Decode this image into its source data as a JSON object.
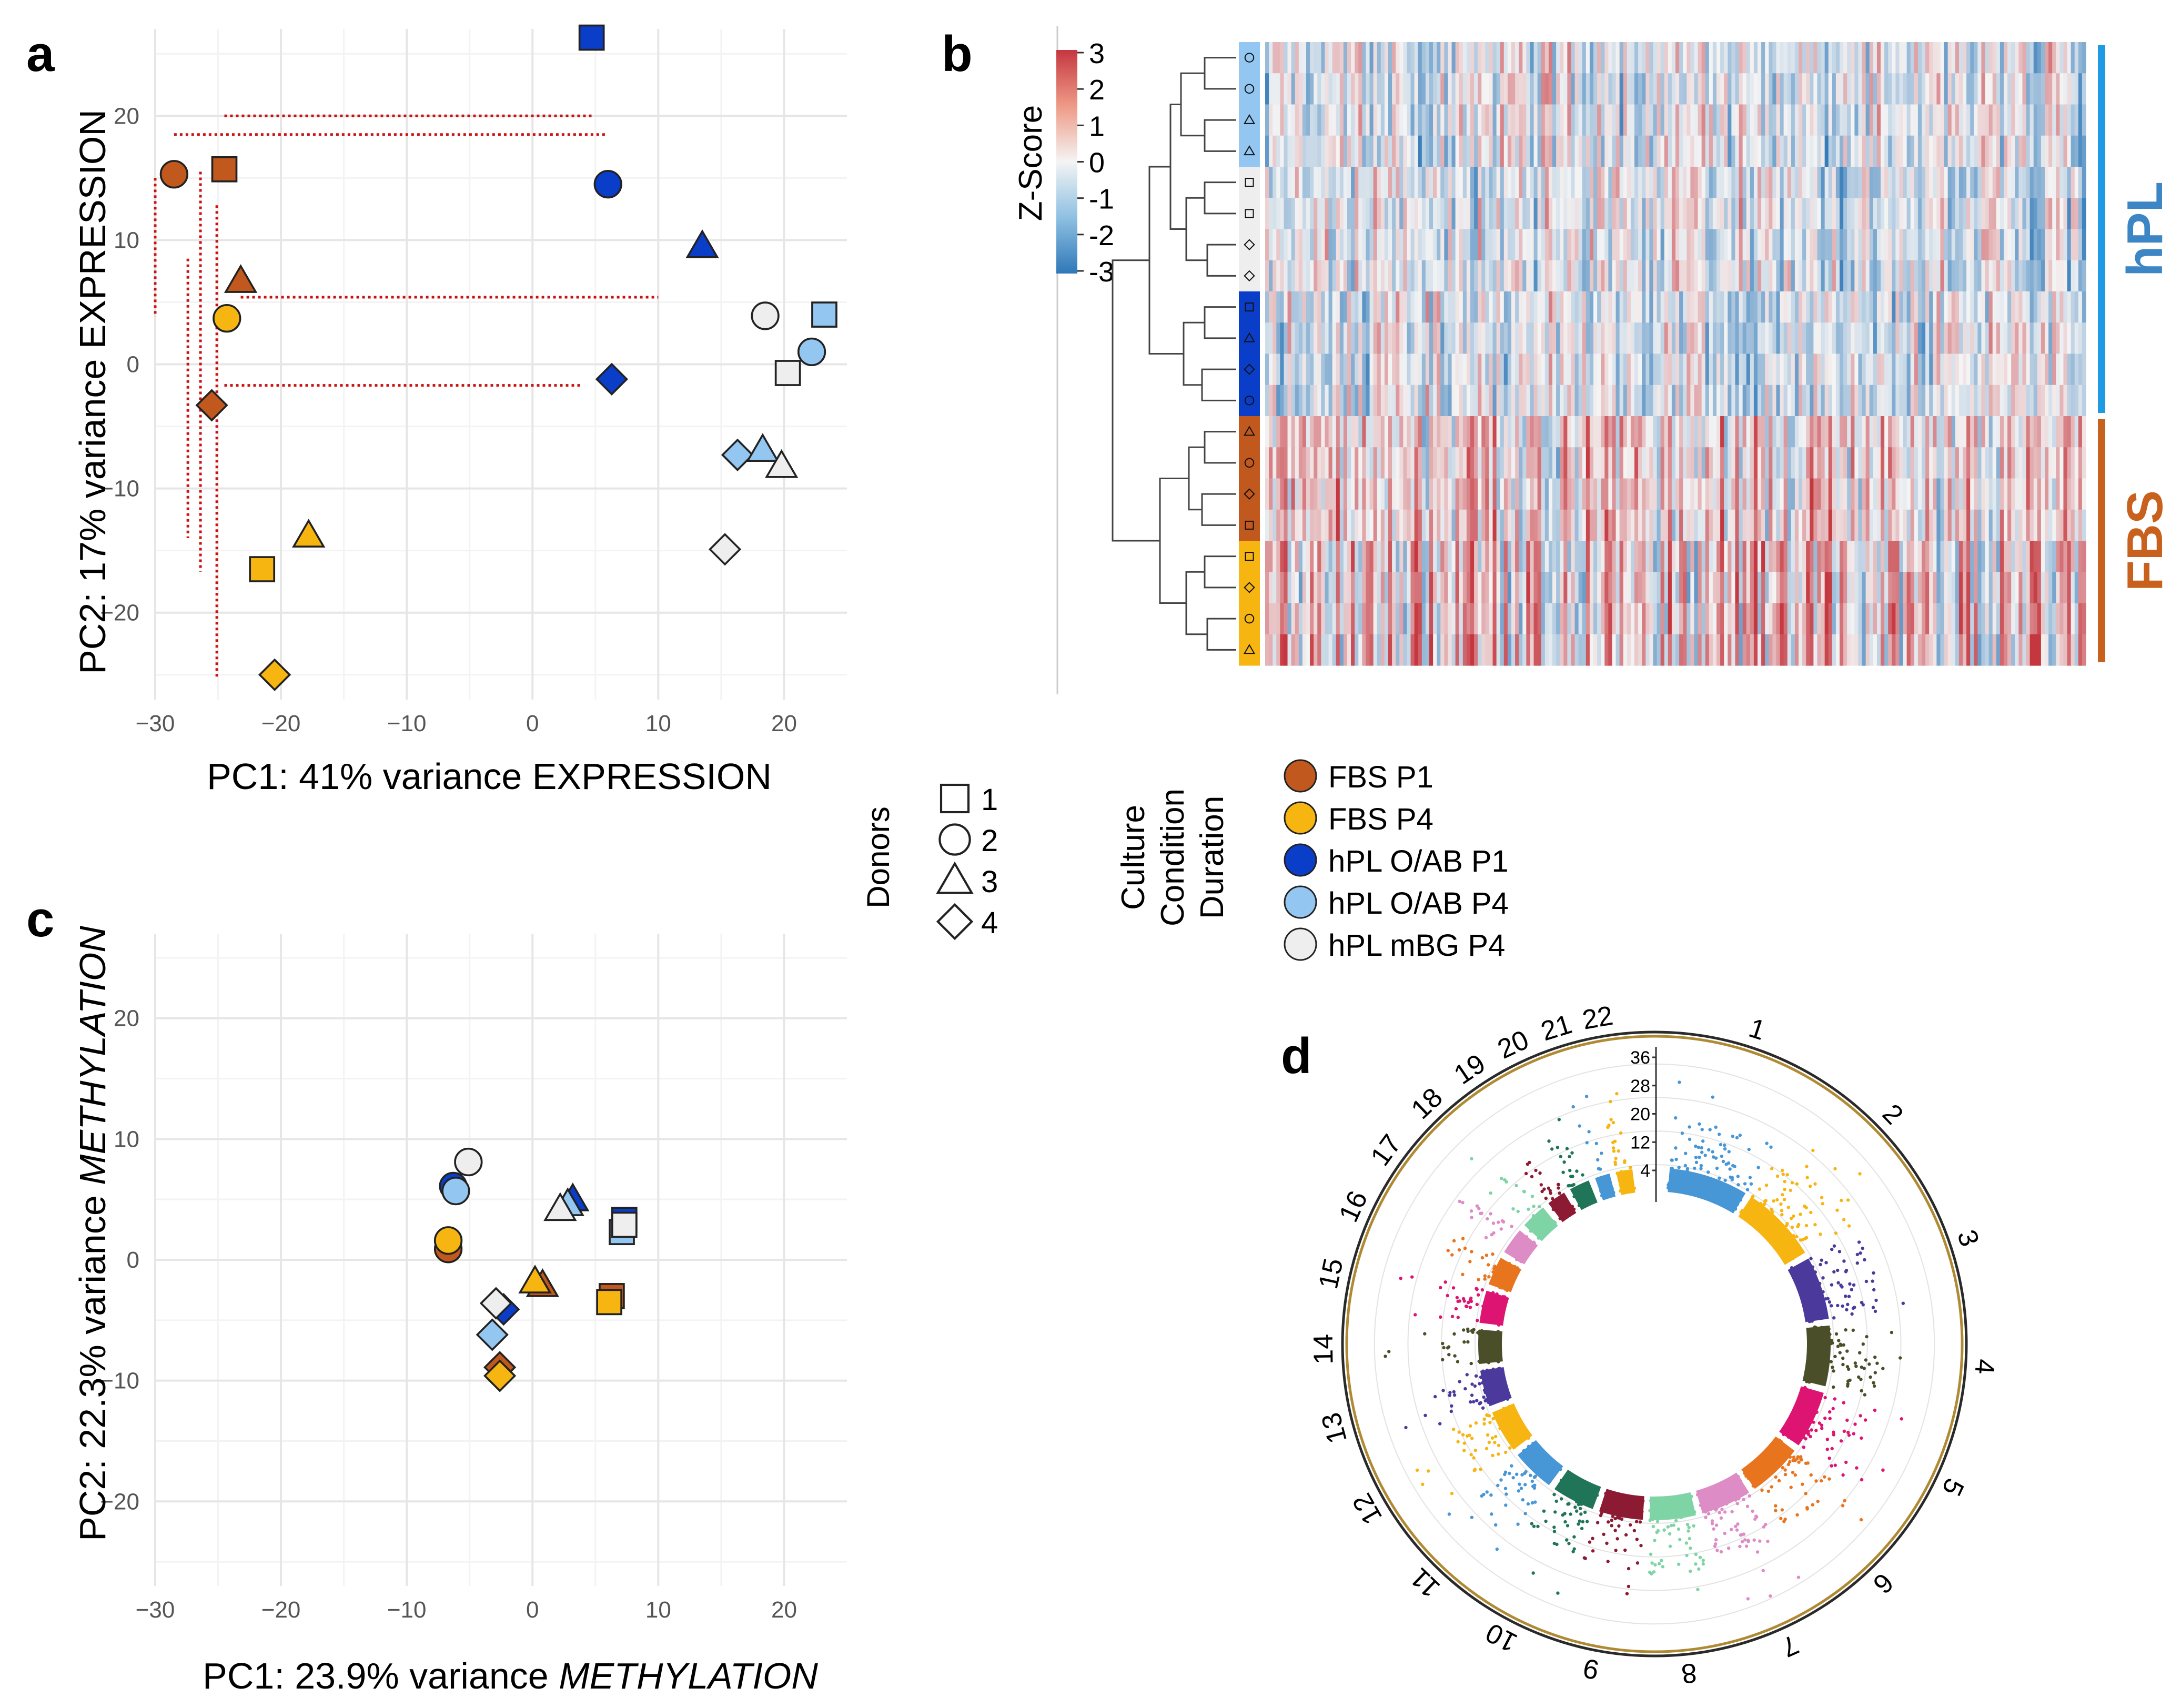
{
  "panel_labels": {
    "a": "a",
    "b": "b",
    "c": "c",
    "d": "d"
  },
  "colors": {
    "FBS P1": "#c1581d",
    "FBS P4": "#f7b512",
    "hPL O/AB P1": "#0a3ec9",
    "hPL O/AB P4": "#93c6f0",
    "hPL mBG P4": "#eeeeee",
    "hPL_bar": "#1f9be6",
    "FBS_bar": "#c8611e",
    "dashed": "#cc1111"
  },
  "donor_shapes": {
    "1": "square",
    "2": "circle",
    "3": "triangle",
    "4": "diamond"
  },
  "chart_data": [
    {
      "id": "a",
      "type": "scatter",
      "title": "",
      "xlabel": "PC1: 41% variance EXPRESSION",
      "ylabel": "PC2: 17% variance EXPRESSION",
      "xlim": [
        -30,
        25
      ],
      "ylim": [
        -27,
        27
      ],
      "xticks": [
        -30,
        -20,
        -10,
        0,
        10,
        20
      ],
      "yticks": [
        -20,
        -10,
        0,
        10,
        20
      ],
      "grid": true,
      "points": [
        {
          "group": "FBS P1",
          "donor": 2,
          "x": -28.5,
          "y": 15.3
        },
        {
          "group": "FBS P1",
          "donor": 1,
          "x": -24.5,
          "y": 15.7
        },
        {
          "group": "FBS P1",
          "donor": 3,
          "x": -23.2,
          "y": 6.7
        },
        {
          "group": "FBS P1",
          "donor": 4,
          "x": -25.5,
          "y": -3.3
        },
        {
          "group": "FBS P4",
          "donor": 2,
          "x": -24.3,
          "y": 3.7
        },
        {
          "group": "FBS P4",
          "donor": 3,
          "x": -17.8,
          "y": -13.8
        },
        {
          "group": "FBS P4",
          "donor": 1,
          "x": -21.5,
          "y": -16.5
        },
        {
          "group": "FBS P4",
          "donor": 4,
          "x": -20.5,
          "y": -25.0
        },
        {
          "group": "hPL O/AB P1",
          "donor": 1,
          "x": 4.7,
          "y": 26.3
        },
        {
          "group": "hPL O/AB P1",
          "donor": 2,
          "x": 6.0,
          "y": 14.5
        },
        {
          "group": "hPL O/AB P1",
          "donor": 3,
          "x": 13.5,
          "y": 9.5
        },
        {
          "group": "hPL O/AB P1",
          "donor": 4,
          "x": 6.3,
          "y": -1.2
        },
        {
          "group": "hPL O/AB P4",
          "donor": 1,
          "x": 23.2,
          "y": 4.0
        },
        {
          "group": "hPL O/AB P4",
          "donor": 2,
          "x": 22.2,
          "y": 1.0
        },
        {
          "group": "hPL O/AB P4",
          "donor": 4,
          "x": 16.3,
          "y": -7.3
        },
        {
          "group": "hPL O/AB P4",
          "donor": 3,
          "x": 18.3,
          "y": -6.9
        },
        {
          "group": "hPL mBG P4",
          "donor": 2,
          "x": 18.5,
          "y": 3.9
        },
        {
          "group": "hPL mBG P4",
          "donor": 1,
          "x": 20.3,
          "y": -0.7
        },
        {
          "group": "hPL mBG P4",
          "donor": 3,
          "x": 19.8,
          "y": -8.2
        },
        {
          "group": "hPL mBG P4",
          "donor": 4,
          "x": 15.3,
          "y": -14.9
        }
      ],
      "connectors": [
        {
          "x1": -24.5,
          "x2": 4.7,
          "y": 20.0
        },
        {
          "x1": -28.5,
          "x2": 6.0,
          "y": 18.5
        },
        {
          "x1": -23.2,
          "x2": 10.0,
          "y": 5.4
        },
        {
          "x1": -24.5,
          "x2": 4.0,
          "y": -1.7
        },
        {
          "x": -30.0,
          "y1": 15.0,
          "y2": 3.8
        },
        {
          "x": -27.4,
          "y1": 8.5,
          "y2": -14.0
        },
        {
          "x": -26.4,
          "y1": 15.5,
          "y2": -16.7
        },
        {
          "x": -25.1,
          "y1": 12.8,
          "y2": -25.2
        }
      ]
    },
    {
      "id": "b",
      "type": "heatmap",
      "colorbar_title": "Z-Score",
      "colorbar_ticks": [
        "3",
        "2",
        "1",
        "0",
        "-1",
        "-2",
        "-3"
      ],
      "rows": [
        {
          "group": "hPL O/AB P4",
          "donor": 2
        },
        {
          "group": "hPL O/AB P4",
          "donor": 2
        },
        {
          "group": "hPL O/AB P4",
          "donor": 3
        },
        {
          "group": "hPL O/AB P4",
          "donor": 3
        },
        {
          "group": "hPL mBG P4",
          "donor": 1
        },
        {
          "group": "hPL mBG P4",
          "donor": 1
        },
        {
          "group": "hPL mBG P4",
          "donor": 4
        },
        {
          "group": "hPL mBG P4",
          "donor": 4
        },
        {
          "group": "hPL O/AB P1",
          "donor": 1
        },
        {
          "group": "hPL O/AB P1",
          "donor": 3
        },
        {
          "group": "hPL O/AB P1",
          "donor": 4
        },
        {
          "group": "hPL O/AB P1",
          "donor": 2
        },
        {
          "group": "FBS P1",
          "donor": 3
        },
        {
          "group": "FBS P1",
          "donor": 2
        },
        {
          "group": "FBS P1",
          "donor": 4
        },
        {
          "group": "FBS P1",
          "donor": 1
        },
        {
          "group": "FBS P4",
          "donor": 1
        },
        {
          "group": "FBS P4",
          "donor": 4
        },
        {
          "group": "FBS P4",
          "donor": 2
        },
        {
          "group": "FBS P4",
          "donor": 3
        }
      ],
      "side_labels": [
        {
          "label": "hPL",
          "rows": [
            0,
            11
          ]
        },
        {
          "label": "FBS",
          "rows": [
            12,
            19
          ]
        }
      ]
    },
    {
      "id": "c",
      "type": "scatter",
      "title": "",
      "xlabel_prefix": "PC1: 23.9% variance ",
      "xlabel_em": "METHYLATION",
      "ylabel_prefix": "PC2: 22.3% variance ",
      "ylabel_em": "METHYLATION",
      "xlim": [
        -30,
        25
      ],
      "ylim": [
        -27,
        27
      ],
      "xticks": [
        -30,
        -20,
        -10,
        0,
        10,
        20
      ],
      "yticks": [
        -20,
        -10,
        0,
        10,
        20
      ],
      "grid": true,
      "points": [
        {
          "group": "hPL O/AB P1",
          "donor": 2,
          "x": -6.3,
          "y": 6.1
        },
        {
          "group": "hPL O/AB P4",
          "donor": 2,
          "x": -6.1,
          "y": 5.7
        },
        {
          "group": "hPL mBG P4",
          "donor": 2,
          "x": -5.1,
          "y": 8.1
        },
        {
          "group": "FBS P1",
          "donor": 2,
          "x": -6.7,
          "y": 0.9
        },
        {
          "group": "FBS P4",
          "donor": 2,
          "x": -6.7,
          "y": 1.6
        },
        {
          "group": "hPL O/AB P1",
          "donor": 3,
          "x": 3.2,
          "y": 5.0
        },
        {
          "group": "hPL O/AB P4",
          "donor": 3,
          "x": 2.8,
          "y": 4.6
        },
        {
          "group": "hPL mBG P4",
          "donor": 3,
          "x": 2.2,
          "y": 4.2
        },
        {
          "group": "hPL O/AB P1",
          "donor": 1,
          "x": 7.3,
          "y": 3.3
        },
        {
          "group": "hPL O/AB P4",
          "donor": 1,
          "x": 7.1,
          "y": 2.3
        },
        {
          "group": "hPL mBG P4",
          "donor": 1,
          "x": 7.3,
          "y": 2.9
        },
        {
          "group": "FBS P1",
          "donor": 3,
          "x": 0.8,
          "y": -2.1
        },
        {
          "group": "FBS P4",
          "donor": 3,
          "x": 0.2,
          "y": -1.8
        },
        {
          "group": "FBS P1",
          "donor": 1,
          "x": 6.3,
          "y": -3.0
        },
        {
          "group": "FBS P4",
          "donor": 1,
          "x": 6.1,
          "y": -3.5
        },
        {
          "group": "hPL O/AB P1",
          "donor": 4,
          "x": -2.3,
          "y": -4.1
        },
        {
          "group": "hPL mBG P4",
          "donor": 4,
          "x": -2.9,
          "y": -3.6
        },
        {
          "group": "hPL O/AB P4",
          "donor": 4,
          "x": -3.2,
          "y": -6.2
        },
        {
          "group": "FBS P1",
          "donor": 4,
          "x": -2.6,
          "y": -8.9
        },
        {
          "group": "FBS P4",
          "donor": 4,
          "x": -2.6,
          "y": -9.6
        }
      ]
    },
    {
      "id": "d",
      "type": "circular_manhattan",
      "chromosomes": [
        "1",
        "2",
        "3",
        "4",
        "5",
        "6",
        "7",
        "8",
        "9",
        "10",
        "11",
        "12",
        "13",
        "14",
        "15",
        "16",
        "17",
        "18",
        "19",
        "20",
        "21",
        "22"
      ],
      "radial_ticks": [
        "4",
        "12",
        "20",
        "28",
        "36"
      ],
      "palette": [
        "#4796d6",
        "#f7b512",
        "#4b3a9c",
        "#4a4f2a",
        "#de1472",
        "#e8741e",
        "#dd8cc6",
        "#7ed4a4",
        "#8c1a32",
        "#207558"
      ]
    }
  ],
  "legend_donors": {
    "title": "Donors",
    "items": [
      {
        "shape": "square",
        "label": "1"
      },
      {
        "shape": "circle",
        "label": "2"
      },
      {
        "shape": "triangle",
        "label": "3"
      },
      {
        "shape": "diamond",
        "label": "4"
      }
    ]
  },
  "legend_culture": {
    "title_lines": [
      "Culture",
      "Condition",
      "Duration"
    ],
    "items": [
      {
        "group": "FBS P1",
        "label": "FBS P1"
      },
      {
        "group": "FBS P4",
        "label": "FBS P4"
      },
      {
        "group": "hPL O/AB P1",
        "label": "hPL O/AB P1"
      },
      {
        "group": "hPL O/AB P4",
        "label": "hPL O/AB P4"
      },
      {
        "group": "hPL mBG P4",
        "label": "hPL mBG P4"
      }
    ]
  }
}
